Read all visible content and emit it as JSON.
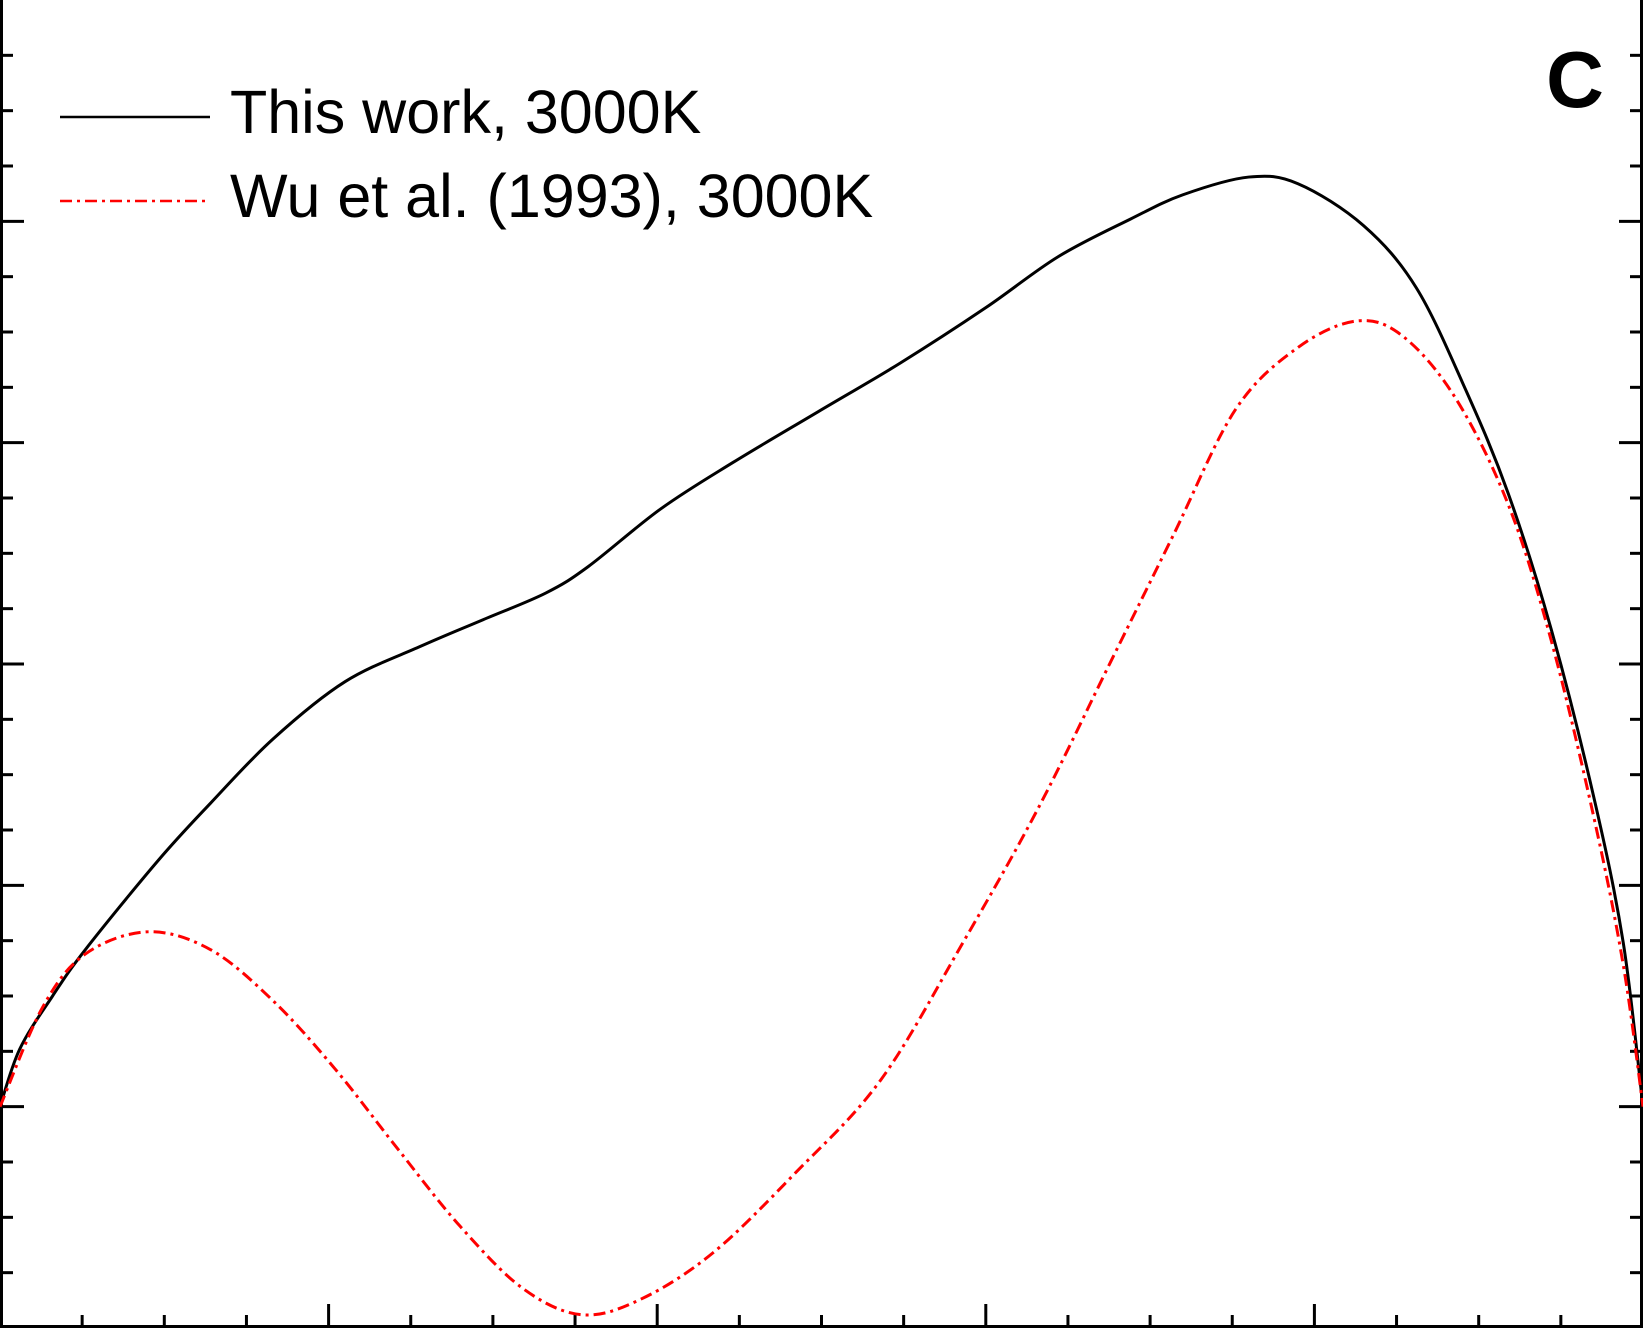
{
  "chart_data": {
    "type": "line",
    "panel_label": "C",
    "xlim": [
      0,
      5
    ],
    "ylim": [
      -1,
      5
    ],
    "xticks": [
      0.25,
      0.5,
      0.75,
      1,
      1.25,
      1.5,
      1.75,
      2,
      2.25,
      2.5,
      2.75,
      3,
      3.25,
      3.5,
      3.75,
      4,
      4.25,
      4.5,
      4.75
    ],
    "yticks": [
      -0.75,
      -0.5,
      -0.25,
      0,
      0.25,
      0.5,
      0.75,
      1,
      1.25,
      1.5,
      1.75,
      2,
      2.25,
      2.5,
      2.75,
      3,
      3.25,
      3.5,
      3.75,
      4,
      4.25,
      4.5,
      4.75
    ],
    "legend": "upper left",
    "series": [
      {
        "name": "This work, 3000K",
        "color": "#000000",
        "dash": "solid",
        "x": [
          0,
          0.06,
          0.16,
          0.26,
          0.48,
          0.64,
          0.83,
          1.05,
          1.28,
          1.47,
          1.66,
          1.79,
          2.01,
          2.23,
          2.49,
          2.74,
          3.0,
          3.22,
          3.44,
          3.6,
          3.8,
          3.95,
          4.15,
          4.31,
          4.46,
          4.59,
          4.72,
          4.85,
          4.94,
          5.0
        ],
        "values": [
          0,
          0.26,
          0.5,
          0.71,
          1.11,
          1.37,
          1.66,
          1.92,
          2.08,
          2.2,
          2.32,
          2.44,
          2.7,
          2.91,
          3.14,
          3.36,
          3.61,
          3.84,
          4.01,
          4.12,
          4.2,
          4.17,
          3.98,
          3.7,
          3.24,
          2.77,
          2.16,
          1.4,
          0.74,
          0
        ]
      },
      {
        "name": "Wu et al. (1993), 3000K",
        "color": "#ff0000",
        "dash": "dashdot",
        "x": [
          0,
          0.13,
          0.26,
          0.45,
          0.64,
          0.83,
          1.02,
          1.21,
          1.4,
          1.59,
          1.77,
          1.95,
          2.17,
          2.42,
          2.68,
          2.93,
          3.16,
          3.38,
          3.57,
          3.76,
          3.95,
          4.13,
          4.27,
          4.43,
          4.59,
          4.72,
          4.85,
          4.94,
          5.0
        ],
        "values": [
          0,
          0.45,
          0.69,
          0.79,
          0.71,
          0.48,
          0.17,
          -0.19,
          -0.54,
          -0.82,
          -0.94,
          -0.87,
          -0.66,
          -0.3,
          0.12,
          0.74,
          1.35,
          2.01,
          2.58,
          3.15,
          3.43,
          3.55,
          3.48,
          3.2,
          2.72,
          2.11,
          1.31,
          0.64,
          0
        ]
      }
    ]
  }
}
